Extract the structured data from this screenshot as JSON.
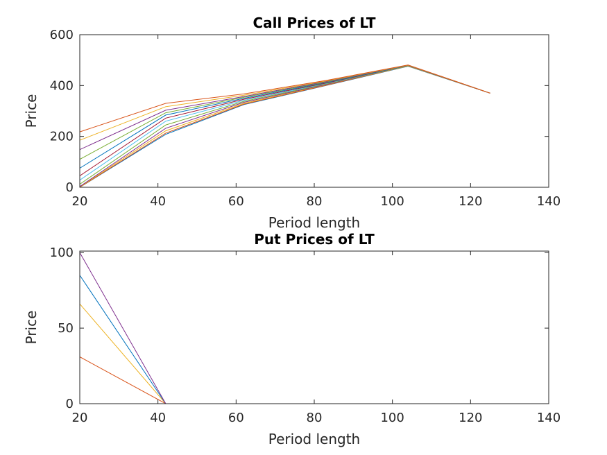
{
  "chart_data": [
    {
      "type": "line",
      "title": "Call Prices of LT",
      "xlabel": "Period length",
      "ylabel": "Price",
      "xlim": [
        20,
        140
      ],
      "ylim": [
        0,
        600
      ],
      "xticks": [
        "20",
        "40",
        "60",
        "80",
        "100",
        "120",
        "140"
      ],
      "yticks": [
        "0",
        "200",
        "400",
        "600"
      ],
      "grid": false,
      "x": [
        20,
        42,
        62,
        83,
        104,
        125
      ],
      "series": [
        {
          "color": "#0072BD",
          "values": [
            0,
            208,
            325,
            400,
            476,
            370
          ]
        },
        {
          "color": "#D95319",
          "values": [
            0,
            213,
            327,
            401,
            477,
            370
          ]
        },
        {
          "color": "#EDB120",
          "values": [
            1,
            222,
            330,
            403,
            477,
            370
          ]
        },
        {
          "color": "#7E2F8E",
          "values": [
            3,
            232,
            334,
            404,
            478,
            370
          ]
        },
        {
          "color": "#77AC30",
          "values": [
            12,
            245,
            338,
            406,
            478,
            370
          ]
        },
        {
          "color": "#4DBEEE",
          "values": [
            28,
            260,
            342,
            408,
            479,
            370
          ]
        },
        {
          "color": "#A2142F",
          "values": [
            45,
            272,
            346,
            410,
            479,
            370
          ]
        },
        {
          "color": "#0072BD",
          "values": [
            75,
            284,
            350,
            412,
            479,
            370
          ]
        },
        {
          "color": "#77AC30",
          "values": [
            110,
            293,
            354,
            414,
            480,
            370
          ]
        },
        {
          "color": "#7E2F8E",
          "values": [
            148,
            303,
            357,
            416,
            480,
            370
          ]
        },
        {
          "color": "#EDB120",
          "values": [
            185,
            317,
            362,
            418,
            480,
            370
          ]
        },
        {
          "color": "#D95319",
          "values": [
            218,
            330,
            367,
            420,
            481,
            370
          ]
        }
      ]
    },
    {
      "type": "line",
      "title": "Put Prices of LT",
      "xlabel": "Period length",
      "ylabel": "Price",
      "xlim": [
        20,
        140
      ],
      "ylim": [
        0,
        101
      ],
      "xticks": [
        "20",
        "40",
        "60",
        "80",
        "100",
        "120",
        "140"
      ],
      "yticks": [
        "0",
        "50",
        "100"
      ],
      "grid": false,
      "x": [
        20,
        42,
        62,
        83,
        104,
        125
      ],
      "series": [
        {
          "color": "#0072BD",
          "values": [
            0,
            0,
            0,
            0,
            0,
            0
          ]
        },
        {
          "color": "#D95319",
          "values": [
            31,
            0,
            0,
            0,
            0,
            0
          ]
        },
        {
          "color": "#EDB120",
          "values": [
            66,
            0,
            0,
            0,
            0,
            0
          ]
        },
        {
          "color": "#0072BD",
          "values": [
            85,
            0,
            0,
            0,
            0,
            0
          ]
        },
        {
          "color": "#7E2F8E",
          "values": [
            100,
            0,
            0,
            0,
            0,
            0
          ]
        }
      ]
    }
  ]
}
